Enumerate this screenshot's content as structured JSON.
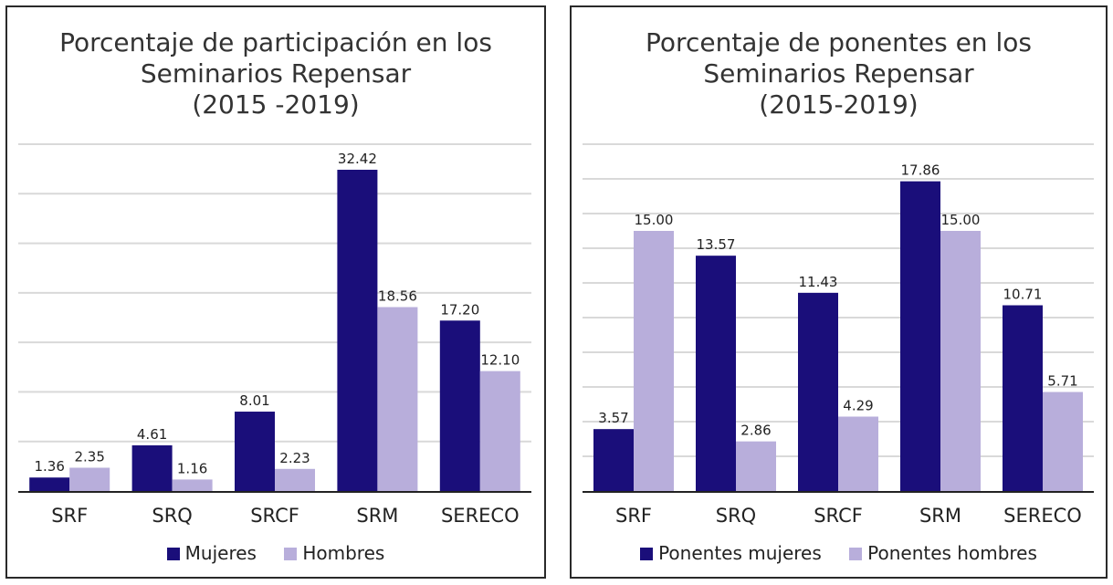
{
  "chart_data": [
    {
      "type": "bar",
      "title_lines": [
        "Porcentaje de participación en los",
        "Seminarios Repensar",
        "(2015 -2019)"
      ],
      "categories": [
        "SRF",
        "SRQ",
        "SRCF",
        "SRM",
        "SERECO"
      ],
      "series": [
        {
          "name": "Mujeres",
          "values": [
            1.36,
            4.61,
            8.01,
            32.42,
            17.2
          ],
          "labels": [
            "1.36",
            "4.61",
            "8.01",
            "32.42",
            "17.20"
          ],
          "color": "#1a0e7a"
        },
        {
          "name": "Hombres",
          "values": [
            2.35,
            1.16,
            2.23,
            18.56,
            12.1
          ],
          "labels": [
            "2.35",
            "1.16",
            "2.23",
            "18.56",
            "12.10"
          ],
          "color": "#b8aedb"
        }
      ],
      "ylim": [
        0,
        35
      ],
      "gridlines": 7,
      "xlabel": "",
      "ylabel": "",
      "legend_position": "bottom"
    },
    {
      "type": "bar",
      "title_lines": [
        "Porcentaje de ponentes en los",
        "Seminarios Repensar",
        "(2015-2019)"
      ],
      "categories": [
        "SRF",
        "SRQ",
        "SRCF",
        "SRM",
        "SERECO"
      ],
      "series": [
        {
          "name": "Ponentes mujeres",
          "values": [
            3.57,
            13.57,
            11.43,
            17.86,
            10.71
          ],
          "labels": [
            "3.57",
            "13.57",
            "11.43",
            "17.86",
            "10.71"
          ],
          "color": "#1a0e7a"
        },
        {
          "name": "Ponentes hombres",
          "values": [
            15.0,
            2.86,
            4.29,
            15.0,
            5.71
          ],
          "labels": [
            "15.00",
            "2.86",
            "4.29",
            "15.00",
            "5.71"
          ],
          "color": "#b8aedb"
        }
      ],
      "ylim": [
        0,
        20
      ],
      "gridlines": 10,
      "xlabel": "",
      "ylabel": "",
      "legend_position": "bottom"
    }
  ]
}
